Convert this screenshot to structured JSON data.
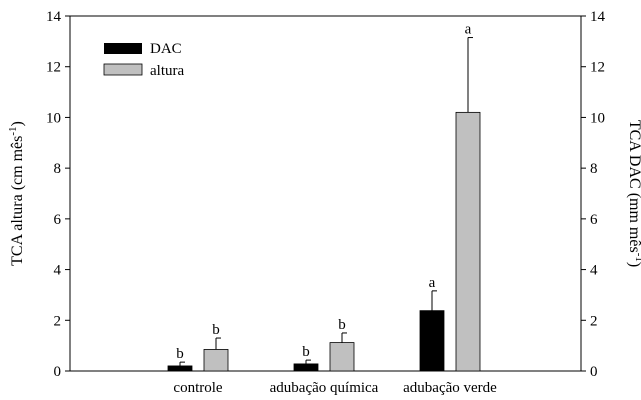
{
  "chart_data": {
    "type": "bar",
    "categories": [
      "controle",
      "adubação química",
      "adubação verde"
    ],
    "series": [
      {
        "name": "DAC",
        "color": "#000000",
        "axis": "right",
        "values": [
          0.2,
          0.28,
          2.38
        ],
        "errors": [
          0.15,
          0.15,
          0.78
        ],
        "letters": [
          "b",
          "b",
          "a"
        ]
      },
      {
        "name": "altura",
        "color": "#c0c0c0",
        "axis": "left",
        "values": [
          0.85,
          1.12,
          10.2
        ],
        "errors": [
          0.45,
          0.38,
          2.95
        ],
        "letters": [
          "b",
          "b",
          "a"
        ]
      }
    ],
    "ylabel_left": {
      "main": "TCA altura (cm mês",
      "sup": "-1",
      "end": ")"
    },
    "ylabel_right": {
      "main": "TCA DAC (mm mês",
      "sup": "-1",
      "end": ")"
    },
    "ylim": [
      0,
      14
    ],
    "yticks": [
      0,
      2,
      4,
      6,
      8,
      10,
      12,
      14
    ],
    "legend_position": "top-left",
    "grid": false
  }
}
